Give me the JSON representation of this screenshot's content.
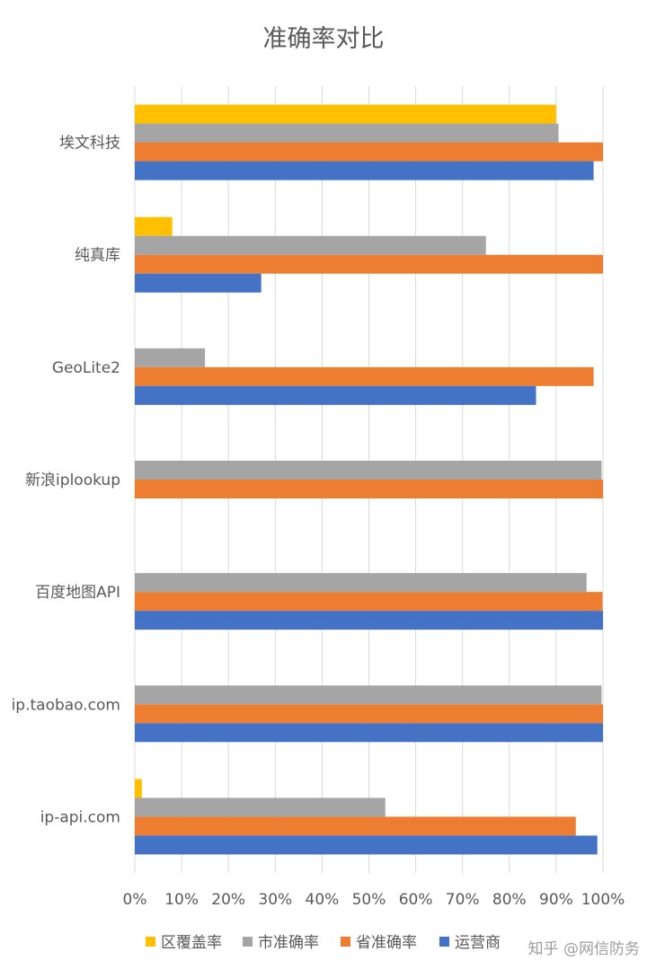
{
  "chart_data": {
    "type": "bar",
    "orientation": "horizontal",
    "title": "准确率对比",
    "categories": [
      "埃文科技",
      "纯真库",
      "GeoLite2",
      "新浪iplookup",
      "百度地图API",
      "ip.taobao.com",
      "ip-api.com"
    ],
    "series": [
      {
        "name": "区覆盖率",
        "color": "#FFC000",
        "values": [
          0.9,
          0.08,
          null,
          null,
          null,
          null,
          0.015
        ]
      },
      {
        "name": "市准确率",
        "color": "#A5A5A5",
        "values": [
          0.905,
          0.75,
          0.15,
          0.997,
          0.965,
          0.997,
          0.535
        ]
      },
      {
        "name": "省准确率",
        "color": "#ED7D31",
        "values": [
          1.0,
          1.0,
          0.98,
          1.0,
          0.999,
          1.0,
          0.942
        ]
      },
      {
        "name": "运营商",
        "color": "#4472C4",
        "values": [
          0.98,
          0.27,
          0.857,
          null,
          1.0,
          1.0,
          0.988
        ]
      }
    ],
    "xlim": [
      0,
      1
    ],
    "x_ticks": [
      "0%",
      "10%",
      "20%",
      "30%",
      "40%",
      "50%",
      "60%",
      "70%",
      "80%",
      "90%",
      "100%"
    ],
    "grid": true,
    "legend_position": "bottom"
  },
  "watermark": "知乎 @网信防务"
}
